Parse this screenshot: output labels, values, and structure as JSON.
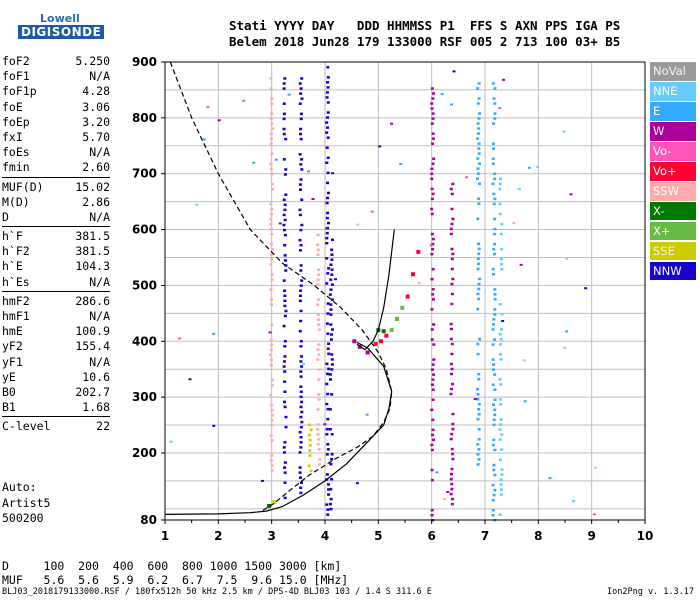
{
  "logo": {
    "line1": "Lowell",
    "line2": "DIGISONDE"
  },
  "header": {
    "line1": "Stati YYYY DAY   DDD HHMMSS P1  FFS S AXN PPS IGA PS",
    "line2": "Belem 2018 Jun28 179 133000 RSF 005 2 713 100 03+ B5"
  },
  "params": {
    "g1": [
      [
        "foF2",
        "5.250"
      ],
      [
        "foF1",
        "N/A"
      ],
      [
        "foF1p",
        "4.28"
      ],
      [
        "foE",
        "3.06"
      ],
      [
        "foEp",
        "3.20"
      ],
      [
        "fxI",
        "5.70"
      ],
      [
        "foEs",
        "N/A"
      ],
      [
        "fmin",
        "2.60"
      ]
    ],
    "g2": [
      [
        "MUF(D)",
        "15.02"
      ],
      [
        "M(D)",
        "2.86"
      ],
      [
        "D",
        "N/A"
      ]
    ],
    "g3": [
      [
        "h`F",
        "381.5"
      ],
      [
        "h`F2",
        "381.5"
      ],
      [
        "h`E",
        "104.3"
      ],
      [
        "h`Es",
        "N/A"
      ]
    ],
    "g4": [
      [
        "hmF2",
        "286.6"
      ],
      [
        "hmF1",
        "N/A"
      ],
      [
        "hmE",
        "100.9"
      ],
      [
        "yF2",
        "155.4"
      ],
      [
        "yF1",
        "N/A"
      ],
      [
        "yE",
        "10.6"
      ],
      [
        "B0",
        "202.7"
      ],
      [
        "B1",
        "1.68"
      ]
    ],
    "g5": [
      [
        "C-level",
        "22"
      ]
    ]
  },
  "info": {
    "line1": "Auto:",
    "line2": "Artist5",
    "line3": "500200"
  },
  "legend": [
    {
      "label": "NoVal",
      "bg": "#9a9a9a"
    },
    {
      "label": "NNE",
      "bg": "#66ccff"
    },
    {
      "label": "E",
      "bg": "#33aaff"
    },
    {
      "label": "W",
      "bg": "#aa0099"
    },
    {
      "label": "Vo-",
      "bg": "#ff55bb"
    },
    {
      "label": "Vo+",
      "bg": "#ff0033"
    },
    {
      "label": "SSW",
      "bg": "#ffaaaa"
    },
    {
      "label": "X-",
      "bg": "#007700"
    },
    {
      "label": "X+",
      "bg": "#66bb44"
    },
    {
      "label": "SSE",
      "bg": "#cccc00"
    },
    {
      "label": "NNW",
      "bg": "#1a00cc"
    }
  ],
  "dmuf": {
    "line1": "D     100  200  400  600  800 1000 1500 3000 [km]",
    "line2": "MUF   5.6  5.6  5.9  6.2  6.7  7.5  9.6 15.0 [MHz]"
  },
  "footer": "BLJ03_2018179133000.RSF / 180fx512h 50 kHz 2.5 km / DPS-4D BLJ03 103 / 1.4 S 311.6 E",
  "version": "Ion2Png v. 1.3.17",
  "chart_data": {
    "type": "scatter",
    "title": "",
    "xlabel": "",
    "ylabel": "",
    "xlim": [
      1,
      10
    ],
    "ylim": [
      80,
      900
    ],
    "xticks": [
      1,
      2,
      3,
      4,
      5,
      6,
      7,
      8,
      9,
      10
    ],
    "yticks": [
      80,
      200,
      300,
      400,
      500,
      600,
      700,
      800,
      900
    ],
    "grid": true,
    "profile_dashed": [
      [
        1.1,
        900
      ],
      [
        1.5,
        800
      ],
      [
        2.0,
        700
      ],
      [
        2.6,
        600
      ],
      [
        3.2,
        540
      ],
      [
        3.8,
        500
      ],
      [
        4.3,
        460
      ],
      [
        4.7,
        420
      ],
      [
        5.0,
        380
      ],
      [
        5.15,
        350
      ],
      [
        5.25,
        310
      ],
      [
        5.22,
        280
      ],
      [
        5.1,
        255
      ],
      [
        4.9,
        230
      ],
      [
        4.6,
        210
      ],
      [
        4.2,
        190
      ],
      [
        3.7,
        160
      ],
      [
        3.3,
        130
      ],
      [
        3.05,
        110
      ],
      [
        2.8,
        95
      ]
    ],
    "trace_x": [
      [
        1.0,
        90
      ],
      [
        2.0,
        91
      ],
      [
        2.6,
        93
      ],
      [
        2.9,
        96
      ],
      [
        3.2,
        104
      ],
      [
        3.6,
        125
      ],
      [
        4.0,
        150
      ],
      [
        4.4,
        180
      ],
      [
        4.8,
        220
      ],
      [
        5.1,
        250
      ],
      [
        5.2,
        280
      ],
      [
        5.25,
        310
      ],
      [
        5.1,
        355
      ],
      [
        4.8,
        388
      ],
      [
        4.6,
        398
      ]
    ],
    "trace_o": [
      [
        4.6,
        395
      ],
      [
        4.75,
        385
      ],
      [
        4.9,
        400
      ],
      [
        5.0,
        420
      ],
      [
        5.1,
        460
      ],
      [
        5.2,
        520
      ],
      [
        5.3,
        600
      ]
    ],
    "echo_groups": [
      {
        "class": "NNW",
        "x": 3.25,
        "y_from": 120,
        "y_to": 880
      },
      {
        "class": "NNW",
        "x": 3.55,
        "y_from": 120,
        "y_to": 880
      },
      {
        "class": "NNW",
        "x": 4.05,
        "y_from": 90,
        "y_to": 900
      },
      {
        "class": "NNW",
        "x": 4.12,
        "y_from": 100,
        "y_to": 600
      },
      {
        "class": "W",
        "x": 6.02,
        "y_from": 80,
        "y_to": 880
      },
      {
        "class": "W",
        "x": 6.38,
        "y_from": 100,
        "y_to": 700
      },
      {
        "class": "E",
        "x": 7.17,
        "y_from": 80,
        "y_to": 880
      },
      {
        "class": "E",
        "x": 6.88,
        "y_from": 180,
        "y_to": 880
      },
      {
        "class": "NNE",
        "x": 7.3,
        "y_from": 90,
        "y_to": 700
      },
      {
        "class": "SSW",
        "x": 3.0,
        "y_from": 160,
        "y_to": 880
      },
      {
        "class": "SSW",
        "x": 3.88,
        "y_from": 180,
        "y_to": 600
      },
      {
        "class": "SSE",
        "x": 3.72,
        "y_from": 150,
        "y_to": 260
      }
    ]
  }
}
